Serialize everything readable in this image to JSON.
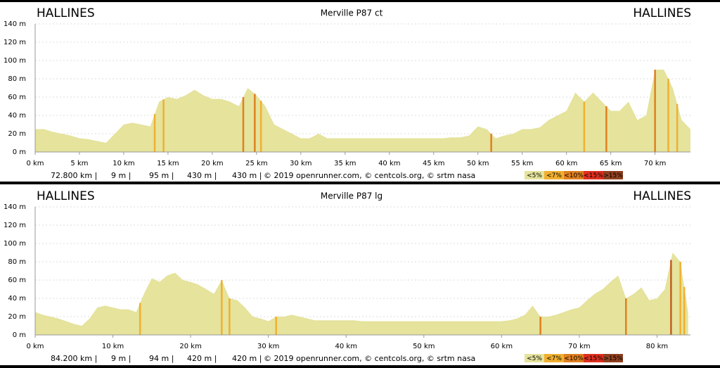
{
  "chart_data": [
    {
      "type": "area",
      "title": "Merville P87 ct",
      "start_label": "HALLINES",
      "end_label": "HALLINES",
      "x": [
        0,
        1,
        2,
        3,
        4,
        5,
        6,
        7,
        8,
        9,
        10,
        11,
        12,
        13,
        14,
        15,
        16,
        17,
        18,
        19,
        20,
        21,
        22,
        23,
        24,
        25,
        26,
        27,
        28,
        29,
        30,
        31,
        32,
        33,
        34,
        35,
        36,
        37,
        38,
        39,
        40,
        41,
        42,
        43,
        44,
        45,
        46,
        47,
        48,
        49,
        50,
        51,
        52,
        53,
        54,
        55,
        56,
        57,
        58,
        59,
        60,
        61,
        62,
        63,
        64,
        65,
        66,
        67,
        68,
        69,
        70,
        71,
        72,
        73,
        74
      ],
      "series": [
        {
          "name": "elevation",
          "color": "#e5e39c",
          "values": [
            25,
            25,
            22,
            20,
            18,
            15,
            14,
            12,
            10,
            20,
            30,
            32,
            30,
            28,
            55,
            60,
            58,
            62,
            68,
            62,
            58,
            58,
            55,
            50,
            70,
            62,
            50,
            30,
            25,
            20,
            15,
            15,
            20,
            15,
            15,
            15,
            15,
            15,
            15,
            15,
            15,
            15,
            15,
            15,
            15,
            15,
            15,
            16,
            16,
            18,
            28,
            25,
            15,
            18,
            20,
            25,
            25,
            27,
            35,
            40,
            45,
            65,
            55,
            65,
            55,
            45,
            45,
            55,
            35,
            40,
            90,
            90,
            70,
            35,
            25
          ]
        }
      ],
      "highlights": [
        {
          "x": 13.5,
          "color": "#f0b030"
        },
        {
          "x": 14.5,
          "color": "#f0b030"
        },
        {
          "x": 23.5,
          "color": "#e08020"
        },
        {
          "x": 24.8,
          "color": "#e08020"
        },
        {
          "x": 25.5,
          "color": "#f0b030"
        },
        {
          "x": 51.5,
          "color": "#e08020"
        },
        {
          "x": 62,
          "color": "#f0b030"
        },
        {
          "x": 64.5,
          "color": "#e08020"
        },
        {
          "x": 70,
          "color": "#e08020"
        },
        {
          "x": 71.5,
          "color": "#f0b030"
        },
        {
          "x": 72.5,
          "color": "#f0b030"
        }
      ],
      "xlim": [
        0,
        74
      ],
      "ylim": [
        0,
        140
      ],
      "xticks": [
        {
          "value": 0,
          "label": "0 km"
        },
        {
          "value": 5,
          "label": "5 km"
        },
        {
          "value": 10,
          "label": "10 km"
        },
        {
          "value": 15,
          "label": "15 km"
        },
        {
          "value": 20,
          "label": "20 km"
        },
        {
          "value": 25,
          "label": "25 km"
        },
        {
          "value": 30,
          "label": "30 km"
        },
        {
          "value": 35,
          "label": "35 km"
        },
        {
          "value": 40,
          "label": "40 km"
        },
        {
          "value": 45,
          "label": "45 km"
        },
        {
          "value": 50,
          "label": "50 km"
        },
        {
          "value": 55,
          "label": "55 km"
        },
        {
          "value": 60,
          "label": "60 km"
        },
        {
          "value": 65,
          "label": "65 km"
        },
        {
          "value": 70,
          "label": "70 km"
        }
      ],
      "yticks": [
        {
          "value": 0,
          "label": "0 m"
        },
        {
          "value": 20,
          "label": "20 m"
        },
        {
          "value": 40,
          "label": "40 m"
        },
        {
          "value": 60,
          "label": "60 m"
        },
        {
          "value": 80,
          "label": "80 m"
        },
        {
          "value": 100,
          "label": "100 m"
        },
        {
          "value": 120,
          "label": "120 m"
        },
        {
          "value": 140,
          "label": "140 m"
        }
      ],
      "grid": true,
      "stats": [
        "72.800 km |",
        "9 m |",
        "95 m |",
        "430 m |",
        "430 m |"
      ],
      "credit": "© 2019 openrunner.com, © centcols.org, © srtm nasa",
      "legend": [
        {
          "label": "<5%",
          "color": "#e5e39c"
        },
        {
          "label": "<7%",
          "color": "#f0b030"
        },
        {
          "label": "<10%",
          "color": "#e08020"
        },
        {
          "label": "<15%",
          "color": "#e03020"
        },
        {
          "label": ">15%",
          "color": "#904020"
        }
      ]
    },
    {
      "type": "area",
      "title": "Merville P87 lg",
      "start_label": "HALLINES",
      "end_label": "HALLINES",
      "x": [
        0,
        1,
        2,
        3,
        4,
        5,
        6,
        7,
        8,
        9,
        10,
        11,
        12,
        13,
        14,
        15,
        16,
        17,
        18,
        19,
        20,
        21,
        22,
        23,
        24,
        25,
        26,
        27,
        28,
        29,
        30,
        31,
        32,
        33,
        34,
        35,
        36,
        37,
        38,
        39,
        40,
        41,
        42,
        43,
        44,
        45,
        46,
        47,
        48,
        49,
        50,
        51,
        52,
        53,
        54,
        55,
        56,
        57,
        58,
        59,
        60,
        61,
        62,
        63,
        64,
        65,
        66,
        67,
        68,
        69,
        70,
        71,
        72,
        73,
        74,
        75,
        76,
        77,
        78,
        79,
        80,
        81,
        82,
        83,
        84
      ],
      "series": [
        {
          "name": "elevation",
          "color": "#e5e39c",
          "values": [
            25,
            22,
            20,
            18,
            15,
            12,
            10,
            18,
            30,
            32,
            30,
            28,
            28,
            25,
            45,
            62,
            58,
            65,
            68,
            60,
            58,
            55,
            50,
            45,
            60,
            40,
            38,
            30,
            20,
            18,
            15,
            20,
            20,
            22,
            20,
            18,
            16,
            16,
            16,
            16,
            16,
            16,
            15,
            15,
            15,
            15,
            15,
            15,
            15,
            15,
            15,
            15,
            15,
            15,
            15,
            15,
            15,
            15,
            15,
            15,
            15,
            16,
            18,
            22,
            32,
            20,
            20,
            22,
            25,
            28,
            30,
            38,
            45,
            50,
            58,
            65,
            40,
            45,
            52,
            38,
            40,
            50,
            90,
            80,
            25
          ]
        }
      ],
      "highlights": [
        {
          "x": 13.5,
          "color": "#f0b030"
        },
        {
          "x": 24,
          "color": "#f0b030"
        },
        {
          "x": 25,
          "color": "#f0b030"
        },
        {
          "x": 31,
          "color": "#f0b030"
        },
        {
          "x": 65,
          "color": "#e08020"
        },
        {
          "x": 76,
          "color": "#e08020"
        },
        {
          "x": 81.8,
          "color": "#c06020"
        },
        {
          "x": 83,
          "color": "#f0b030"
        },
        {
          "x": 83.5,
          "color": "#f0b030"
        }
      ],
      "xlim": [
        0,
        84.3
      ],
      "ylim": [
        0,
        140
      ],
      "xticks": [
        {
          "value": 0,
          "label": "0 km"
        },
        {
          "value": 10,
          "label": "10 km"
        },
        {
          "value": 20,
          "label": "20 km"
        },
        {
          "value": 30,
          "label": "30 km"
        },
        {
          "value": 40,
          "label": "40 km"
        },
        {
          "value": 50,
          "label": "50 km"
        },
        {
          "value": 60,
          "label": "60 km"
        },
        {
          "value": 70,
          "label": "70 km"
        },
        {
          "value": 80,
          "label": "80 km"
        }
      ],
      "yticks": [
        {
          "value": 0,
          "label": "0 m"
        },
        {
          "value": 20,
          "label": "20 m"
        },
        {
          "value": 40,
          "label": "40 m"
        },
        {
          "value": 60,
          "label": "60 m"
        },
        {
          "value": 80,
          "label": "80 m"
        },
        {
          "value": 100,
          "label": "100 m"
        },
        {
          "value": 120,
          "label": "120 m"
        },
        {
          "value": 140,
          "label": "140 m"
        }
      ],
      "grid": true,
      "stats": [
        "84.200 km |",
        "9 m |",
        "94 m |",
        "420 m |",
        "420 m |"
      ],
      "credit": "© 2019 openrunner.com, © centcols.org, © srtm nasa",
      "legend": [
        {
          "label": "<5%",
          "color": "#e5e39c"
        },
        {
          "label": "<7%",
          "color": "#f0b030"
        },
        {
          "label": "<10%",
          "color": "#e08020"
        },
        {
          "label": "<15%",
          "color": "#e03020"
        },
        {
          "label": ">15%",
          "color": "#904020"
        }
      ]
    }
  ]
}
